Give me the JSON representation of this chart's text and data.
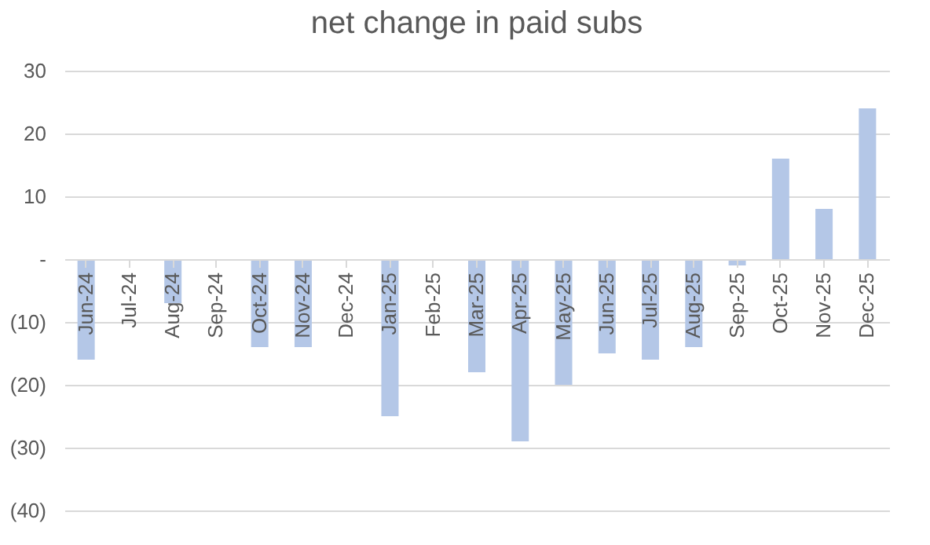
{
  "chart_data": {
    "type": "bar",
    "title": "net change in paid subs",
    "categories": [
      "Jun-24",
      "Jul-24",
      "Aug-24",
      "Sep-24",
      "Oct-24",
      "Nov-24",
      "Dec-24",
      "Jan-25",
      "Feb-25",
      "Mar-25",
      "Apr-25",
      "May-25",
      "Jun-25",
      "Jul-25",
      "Aug-25",
      "Sep-25",
      "Oct-25",
      "Nov-25",
      "Dec-25"
    ],
    "values": [
      -16,
      null,
      -7,
      null,
      -14,
      -14,
      null,
      -25,
      null,
      -18,
      -29,
      -20,
      -15,
      -16,
      -14,
      -1,
      16,
      8,
      24
    ],
    "color": "#b4c7e7",
    "ylim": [
      -40,
      30
    ],
    "yticks": [
      {
        "value": -40,
        "label": "(40)"
      },
      {
        "value": -30,
        "label": "(30)"
      },
      {
        "value": -20,
        "label": "(20)"
      },
      {
        "value": -10,
        "label": "(10)"
      },
      {
        "value": 0,
        "label": "-"
      },
      10,
      20,
      30
    ],
    "grid": "y"
  }
}
